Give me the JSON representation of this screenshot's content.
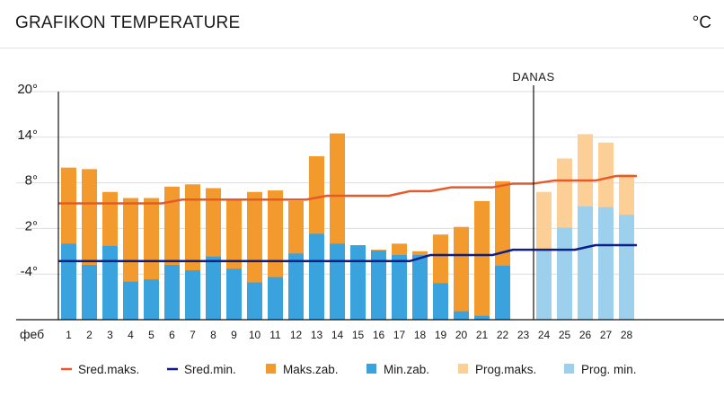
{
  "header": {
    "title": "GRAFIKON TEMPERATURE",
    "unit": "°C"
  },
  "chart_data": {
    "type": "bar",
    "title": "GRAFIKON TEMPERATURE",
    "unit": "°C",
    "x_axis_label": "феб",
    "today_label": "DANAS",
    "today_day": 24,
    "ylim": [
      -10,
      20
    ],
    "yticks": [
      20,
      14,
      8,
      2,
      -4
    ],
    "ytick_labels": [
      "20°",
      "14°",
      "8°",
      "2°",
      "-4°"
    ],
    "grid": true,
    "legend_position": "bottom",
    "colors": {
      "avg_max": "#e8592a",
      "avg_min": "#0d1f87",
      "max_obs": "#f29a2e",
      "min_obs": "#3aa3dd",
      "fc_max": "#fbcf95",
      "fc_min": "#9dd0ec",
      "axis": "#111111",
      "grid": "#dddddd"
    },
    "days": [
      1,
      2,
      3,
      4,
      5,
      6,
      7,
      8,
      9,
      10,
      11,
      12,
      13,
      14,
      15,
      16,
      17,
      18,
      19,
      20,
      21,
      22,
      23,
      24,
      25,
      26,
      27,
      28
    ],
    "day_labels": [
      "1",
      "2",
      "3",
      "4",
      "5",
      "6",
      "7",
      "8",
      "9",
      "10",
      "11",
      "12",
      "13",
      "14",
      "15",
      "16",
      "17",
      "18",
      "19",
      "20",
      "21",
      "22",
      "23",
      "24",
      "25",
      "26",
      "27",
      "28"
    ],
    "max_obs": [
      10,
      9.8,
      6.8,
      6,
      6,
      7.5,
      7.8,
      7.3,
      5.8,
      6.8,
      7,
      5.6,
      11.5,
      14.5,
      -1.3,
      -0.8,
      0,
      -1,
      1.2,
      2.2,
      5.6,
      8.2,
      null
    ],
    "min_obs": [
      0,
      -2.8,
      -0.3,
      -5,
      -4.7,
      -2.8,
      -3.5,
      -1.7,
      -3.3,
      -5.1,
      -4.4,
      -1.3,
      1.3,
      0,
      -0.2,
      -0.9,
      -1.5,
      -1.5,
      -5.2,
      -8.9,
      -9.5,
      -2.9,
      null
    ],
    "max_fc": [
      6.8,
      11.2,
      14.4,
      13.3,
      9.1
    ],
    "min_fc": [
      -0.8,
      2.1,
      4.9,
      4.8,
      3.8
    ],
    "avg_max": [
      5.3,
      5.3,
      5.3,
      5.3,
      5.3,
      5.3,
      5.8,
      5.8,
      5.8,
      5.8,
      5.8,
      5.8,
      5.8,
      6.3,
      6.3,
      6.3,
      6.3,
      6.9,
      6.9,
      7.4,
      7.4,
      7.4,
      7.9,
      7.9,
      8.3,
      8.3,
      8.3,
      8.9,
      8.9
    ],
    "avg_min": [
      -2.3,
      -2.3,
      -2.3,
      -2.3,
      -2.3,
      -2.3,
      -2.3,
      -2.3,
      -2.3,
      -2.3,
      -2.3,
      -2.3,
      -2.3,
      -2.3,
      -2.3,
      -2.3,
      -2.3,
      -2.3,
      -1.5,
      -1.5,
      -1.5,
      -1.5,
      -0.8,
      -0.8,
      -0.8,
      -0.8,
      -0.2,
      -0.2,
      -0.2
    ],
    "legend": [
      {
        "key": "avg_max",
        "label": "Sred.maks.",
        "style": "line"
      },
      {
        "key": "avg_min",
        "label": "Sred.min.",
        "style": "line"
      },
      {
        "key": "max_obs",
        "label": "Maks.zab.",
        "style": "box"
      },
      {
        "key": "min_obs",
        "label": "Min.zab.",
        "style": "box"
      },
      {
        "key": "fc_max",
        "label": "Prog.maks.",
        "style": "box"
      },
      {
        "key": "fc_min",
        "label": "Prog. min.",
        "style": "box"
      }
    ]
  }
}
